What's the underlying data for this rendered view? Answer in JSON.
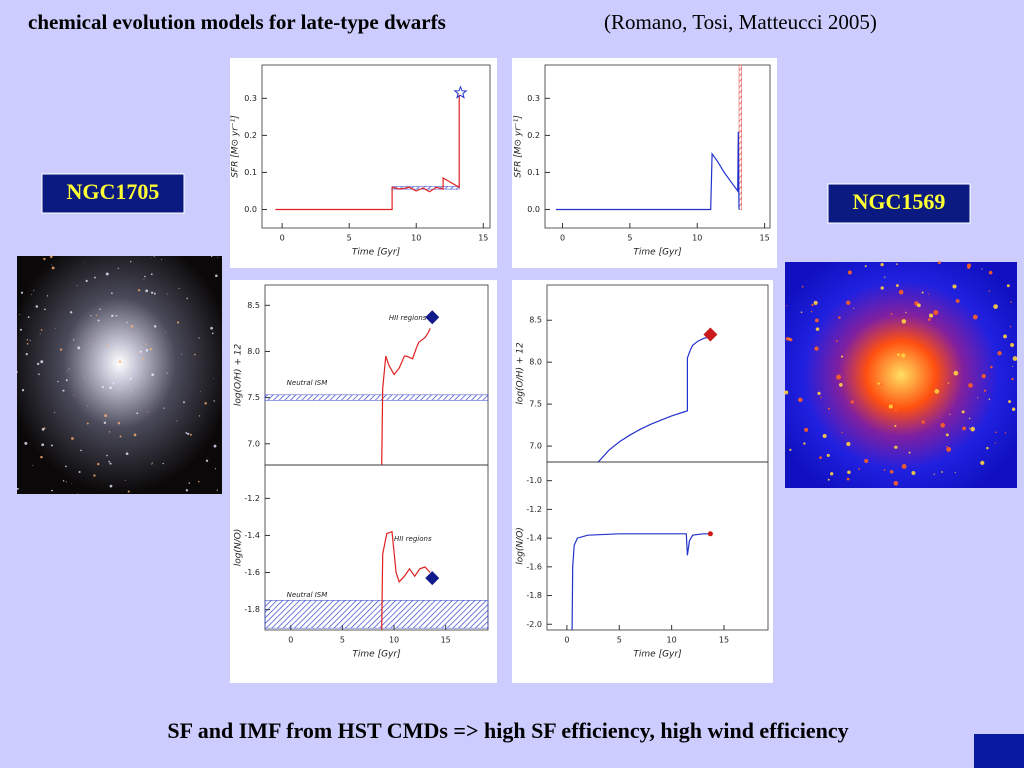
{
  "header": {
    "title": "chemical evolution models for late-type dwarfs",
    "citation": "(Romano, Tosi, Matteucci 2005)"
  },
  "galaxies": [
    "NGC1705",
    "NGC1569"
  ],
  "footer": "SF and IMF from HST CMDs => high SF efficiency, high wind efficiency",
  "chart_data": [
    {
      "type": "line",
      "ylabel": "SFR [M⊙ yr⁻¹]",
      "xlabel": "Time [Gyr]",
      "xlim": [
        -1.5,
        15.5
      ],
      "xticks": [
        0,
        5,
        10,
        15
      ],
      "ylim": [
        -0.05,
        0.39
      ],
      "yticks": [
        {
          "value": 0,
          "label": "0.0"
        },
        0.1,
        0.2,
        0.3
      ],
      "series": [
        {
          "style": "band",
          "color": "#3344cc",
          "x": [
            8.2,
            13.2
          ],
          "values": [
            0.055,
            0.062
          ]
        },
        {
          "style": "line",
          "color": "#e02020",
          "x": [
            -0.5,
            8.2,
            8.2,
            8.8,
            9.5,
            10,
            10.5,
            11,
            11.5,
            12,
            12,
            13.2,
            13.2
          ],
          "values": [
            0,
            0,
            0.06,
            0.055,
            0.06,
            0.05,
            0.058,
            0.048,
            0.06,
            0.055,
            0.085,
            0.06,
            0.31
          ]
        },
        {
          "style": "star",
          "color": "#2233cc",
          "x": [
            13.3
          ],
          "values": [
            0.315
          ]
        }
      ]
    },
    {
      "type": "line",
      "ylabel": "SFR [M⊙ yr⁻¹]",
      "xlabel": "Time [Gyr]",
      "xlim": [
        -1.3,
        15.4
      ],
      "xticks": [
        0,
        5,
        10,
        15
      ],
      "ylim": [
        -0.05,
        0.39
      ],
      "yticks": [
        {
          "value": 0,
          "label": "0.0"
        },
        0.1,
        0.2,
        0.3
      ],
      "series": [
        {
          "style": "band",
          "color": "#e04040",
          "x": [
            13.1,
            13.3
          ],
          "values": [
            0,
            0.39
          ]
        },
        {
          "style": "line",
          "color": "#2233cc",
          "x": [
            -0.5,
            11,
            11.1,
            11.5,
            12,
            12.5,
            13,
            13.05,
            13.1
          ],
          "values": [
            0,
            0,
            0.15,
            0.13,
            0.1,
            0.075,
            0.05,
            0.21,
            0
          ]
        }
      ]
    },
    {
      "type": "line",
      "ylabel": "log(O/H) + 12",
      "xlim": [
        -2.5,
        19.1
      ],
      "ylim": [
        6.77,
        8.72
      ],
      "yticks": [
        {
          "value": 7,
          "label": "7.0"
        },
        7.5,
        {
          "value": 8,
          "label": "8.0"
        },
        8.5
      ],
      "annotations": [
        {
          "text": "HII regions",
          "x": 9.5,
          "y": 8.36
        },
        {
          "text": "Neutral ISM",
          "x": -0.4,
          "y": 7.66
        }
      ],
      "series": [
        {
          "style": "band",
          "color": "#3344cc",
          "x": [
            -2.5,
            19.1
          ],
          "values": [
            7.47,
            7.53
          ]
        },
        {
          "style": "line",
          "color": "#e02020",
          "x": [
            8.8,
            8.9,
            9.2,
            9.5,
            10,
            10.5,
            11,
            11.2,
            11.8,
            12.2,
            12.4,
            13,
            13.3,
            13.5
          ],
          "values": [
            6.77,
            7.6,
            7.95,
            7.85,
            7.75,
            7.82,
            7.95,
            7.95,
            7.92,
            8.05,
            8.1,
            8.15,
            8.2,
            8.25
          ]
        },
        {
          "style": "diamond",
          "color": "#101a8a",
          "x": [
            13.7
          ],
          "values": [
            8.37
          ]
        }
      ]
    },
    {
      "type": "line",
      "ylabel": "log(N/O)",
      "xlabel": "Time [Gyr]",
      "xlim": [
        -2.5,
        19.1
      ],
      "xticks": [
        0,
        5,
        10,
        15
      ],
      "ylim": [
        -1.91,
        -1.02
      ],
      "yticks": [
        -1.2,
        -1.4,
        -1.6,
        -1.8
      ],
      "annotations": [
        {
          "text": "HII regions",
          "x": 10,
          "y": -1.42
        },
        {
          "text": "Neutral ISM",
          "x": -0.4,
          "y": -1.72
        }
      ],
      "series": [
        {
          "style": "band",
          "color": "#3344cc",
          "x": [
            -2.5,
            19.1
          ],
          "values": [
            -1.9,
            -1.75
          ]
        },
        {
          "style": "line",
          "color": "#e02020",
          "x": [
            8.8,
            8.9,
            9.3,
            9.8,
            10.2,
            10.5,
            11,
            11.5,
            12,
            12.5,
            13,
            13.5
          ],
          "values": [
            -1.91,
            -1.5,
            -1.39,
            -1.38,
            -1.6,
            -1.65,
            -1.62,
            -1.58,
            -1.62,
            -1.58,
            -1.57,
            -1.6
          ]
        },
        {
          "style": "diamond",
          "color": "#101a8a",
          "x": [
            13.7
          ],
          "values": [
            -1.63
          ]
        }
      ]
    },
    {
      "type": "line",
      "ylabel": "log(O/H) + 12",
      "xlim": [
        -1.9,
        19.2
      ],
      "ylim": [
        6.81,
        8.92
      ],
      "yticks": [
        {
          "value": 7,
          "label": "7.0"
        },
        7.5,
        {
          "value": 8,
          "label": "8.0"
        },
        8.5
      ],
      "series": [
        {
          "style": "line",
          "color": "#2233cc",
          "x": [
            3,
            4,
            5,
            6,
            7,
            8,
            9,
            10,
            11,
            11.5,
            11.5,
            11.8,
            12,
            12.5,
            13,
            13.5
          ],
          "values": [
            6.81,
            6.95,
            7.05,
            7.13,
            7.2,
            7.26,
            7.31,
            7.36,
            7.4,
            7.42,
            8.05,
            8.15,
            8.2,
            8.25,
            8.28,
            8.3
          ]
        },
        {
          "style": "diamond",
          "color": "#cc1a1a",
          "x": [
            13.7
          ],
          "values": [
            8.33
          ]
        }
      ]
    },
    {
      "type": "line",
      "ylabel": "log(N/O)",
      "xlabel": "Time [Gyr]",
      "xlim": [
        -1.9,
        19.2
      ],
      "xticks": [
        0,
        5,
        10,
        15
      ],
      "ylim": [
        -2.04,
        -0.87
      ],
      "yticks": [
        {
          "value": -1,
          "label": "-1.0"
        },
        -1.2,
        -1.4,
        -1.6,
        -1.8,
        {
          "value": -2,
          "label": "-2.0"
        }
      ],
      "series": [
        {
          "style": "line",
          "color": "#2233cc",
          "x": [
            0.5,
            0.55,
            0.7,
            1,
            2,
            5,
            8,
            11.4,
            11.5,
            11.7,
            12,
            13,
            13.6
          ],
          "values": [
            -2.04,
            -1.6,
            -1.45,
            -1.4,
            -1.38,
            -1.37,
            -1.37,
            -1.37,
            -1.52,
            -1.42,
            -1.38,
            -1.37,
            -1.37
          ]
        },
        {
          "style": "dot",
          "color": "#cc1a1a",
          "x": [
            13.7
          ],
          "values": [
            -1.37
          ]
        }
      ]
    }
  ]
}
